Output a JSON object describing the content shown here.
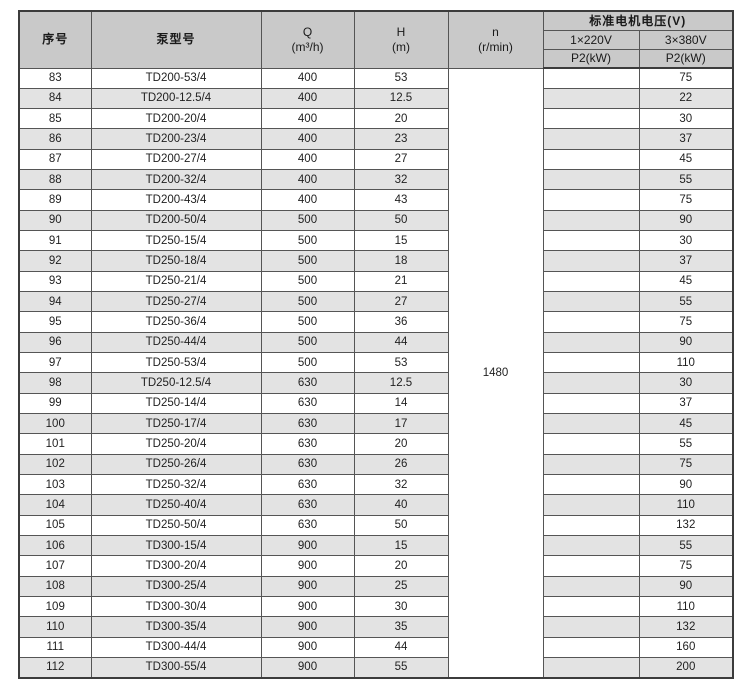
{
  "colors": {
    "header_bg": "#c9c9c9",
    "row_alt_bg": "#e3e3e3",
    "border": "#555555",
    "border_dark": "#3c3c3c"
  },
  "table": {
    "header": {
      "col_no": "序号",
      "col_model": "泵型号",
      "col_q_line1": "Q",
      "col_q_line2": "(m³/h)",
      "col_h_line1": "H",
      "col_h_line2": "(m)",
      "col_n_line1": "n",
      "col_n_line2": "(r/min)",
      "voltage_group": "标准电机电压(V)",
      "voltage_220": "1×220V",
      "voltage_380": "3×380V",
      "p2_220": "P2(kW)",
      "p2_380": "P2(kW)"
    },
    "n_value": "1480",
    "rows": [
      {
        "no": "83",
        "model": "TD200-53/4",
        "q": "400",
        "h": "53",
        "p220": "",
        "p380": "75"
      },
      {
        "no": "84",
        "model": "TD200-12.5/4",
        "q": "400",
        "h": "12.5",
        "p220": "",
        "p380": "22"
      },
      {
        "no": "85",
        "model": "TD200-20/4",
        "q": "400",
        "h": "20",
        "p220": "",
        "p380": "30"
      },
      {
        "no": "86",
        "model": "TD200-23/4",
        "q": "400",
        "h": "23",
        "p220": "",
        "p380": "37"
      },
      {
        "no": "87",
        "model": "TD200-27/4",
        "q": "400",
        "h": "27",
        "p220": "",
        "p380": "45"
      },
      {
        "no": "88",
        "model": "TD200-32/4",
        "q": "400",
        "h": "32",
        "p220": "",
        "p380": "55"
      },
      {
        "no": "89",
        "model": "TD200-43/4",
        "q": "400",
        "h": "43",
        "p220": "",
        "p380": "75"
      },
      {
        "no": "90",
        "model": "TD200-50/4",
        "q": "500",
        "h": "50",
        "p220": "",
        "p380": "90"
      },
      {
        "no": "91",
        "model": "TD250-15/4",
        "q": "500",
        "h": "15",
        "p220": "",
        "p380": "30"
      },
      {
        "no": "92",
        "model": "TD250-18/4",
        "q": "500",
        "h": "18",
        "p220": "",
        "p380": "37"
      },
      {
        "no": "93",
        "model": "TD250-21/4",
        "q": "500",
        "h": "21",
        "p220": "",
        "p380": "45"
      },
      {
        "no": "94",
        "model": "TD250-27/4",
        "q": "500",
        "h": "27",
        "p220": "",
        "p380": "55"
      },
      {
        "no": "95",
        "model": "TD250-36/4",
        "q": "500",
        "h": "36",
        "p220": "",
        "p380": "75"
      },
      {
        "no": "96",
        "model": "TD250-44/4",
        "q": "500",
        "h": "44",
        "p220": "",
        "p380": "90"
      },
      {
        "no": "97",
        "model": "TD250-53/4",
        "q": "500",
        "h": "53",
        "p220": "",
        "p380": "110"
      },
      {
        "no": "98",
        "model": "TD250-12.5/4",
        "q": "630",
        "h": "12.5",
        "p220": "",
        "p380": "30"
      },
      {
        "no": "99",
        "model": "TD250-14/4",
        "q": "630",
        "h": "14",
        "p220": "",
        "p380": "37"
      },
      {
        "no": "100",
        "model": "TD250-17/4",
        "q": "630",
        "h": "17",
        "p220": "",
        "p380": "45"
      },
      {
        "no": "101",
        "model": "TD250-20/4",
        "q": "630",
        "h": "20",
        "p220": "",
        "p380": "55"
      },
      {
        "no": "102",
        "model": "TD250-26/4",
        "q": "630",
        "h": "26",
        "p220": "",
        "p380": "75"
      },
      {
        "no": "103",
        "model": "TD250-32/4",
        "q": "630",
        "h": "32",
        "p220": "",
        "p380": "90"
      },
      {
        "no": "104",
        "model": "TD250-40/4",
        "q": "630",
        "h": "40",
        "p220": "",
        "p380": "110"
      },
      {
        "no": "105",
        "model": "TD250-50/4",
        "q": "630",
        "h": "50",
        "p220": "",
        "p380": "132"
      },
      {
        "no": "106",
        "model": "TD300-15/4",
        "q": "900",
        "h": "15",
        "p220": "",
        "p380": "55"
      },
      {
        "no": "107",
        "model": "TD300-20/4",
        "q": "900",
        "h": "20",
        "p220": "",
        "p380": "75"
      },
      {
        "no": "108",
        "model": "TD300-25/4",
        "q": "900",
        "h": "25",
        "p220": "",
        "p380": "90"
      },
      {
        "no": "109",
        "model": "TD300-30/4",
        "q": "900",
        "h": "30",
        "p220": "",
        "p380": "110"
      },
      {
        "no": "110",
        "model": "TD300-35/4",
        "q": "900",
        "h": "35",
        "p220": "",
        "p380": "132"
      },
      {
        "no": "111",
        "model": "TD300-44/4",
        "q": "900",
        "h": "44",
        "p220": "",
        "p380": "160"
      },
      {
        "no": "112",
        "model": "TD300-55/4",
        "q": "900",
        "h": "55",
        "p220": "",
        "p380": "200"
      }
    ]
  }
}
